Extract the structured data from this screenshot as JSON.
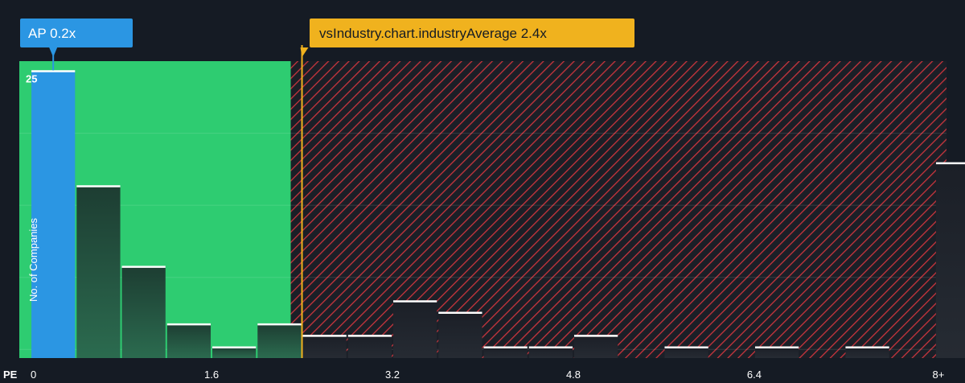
{
  "chart_data": {
    "type": "bar",
    "xlabel": "PE",
    "ylabel": "No. of Companies",
    "x_ticks": [
      "0",
      "1.6",
      "3.2",
      "4.8",
      "6.4",
      "8+"
    ],
    "x_tick_values": [
      0,
      1.6,
      3.2,
      4.8,
      6.4,
      8
    ],
    "y_ticks": [
      "25"
    ],
    "y_tick_values": [
      25
    ],
    "ylim": [
      0,
      25.8
    ],
    "xlim": [
      -0.1,
      8.1
    ],
    "bin_width": 0.4,
    "bins": [
      0,
      0.4,
      0.8,
      1.2,
      1.6,
      2.0,
      2.4,
      2.8,
      3.2,
      3.6,
      4.0,
      4.4,
      4.8,
      5.2,
      5.6,
      6.0,
      6.4,
      6.8,
      7.2,
      7.6,
      8.0
    ],
    "values": [
      25,
      15,
      8,
      3,
      1,
      3,
      2,
      2,
      5,
      4,
      1,
      1,
      2,
      0,
      1,
      0,
      1,
      0,
      1,
      0,
      17
    ],
    "company": {
      "label": "AP 0.2x",
      "value": 0.2,
      "bin_index": 0,
      "color": "#2b96e3"
    },
    "industry_average": {
      "label": "vsIndustry.chart.industryAverage 2.4x",
      "value": 2.4,
      "color": "#f0b21e"
    },
    "grid": true,
    "colors": {
      "background": "#151b24",
      "fair_zone": "#2ecc71",
      "overvalued_zone": "#d9363e",
      "bar_in_zone": "#1f4a3a",
      "bar_out_zone": "#1a1f27",
      "bar_top": "#ffffff"
    }
  }
}
